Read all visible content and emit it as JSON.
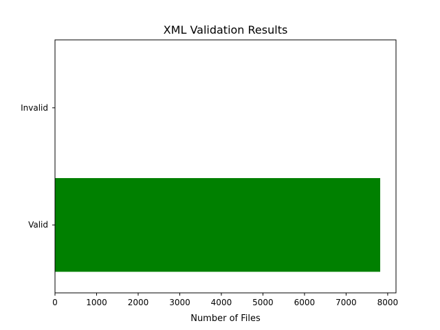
{
  "chart_data": {
    "type": "bar",
    "orientation": "horizontal",
    "title": "XML Validation Results",
    "xlabel": "Number of Files",
    "ylabel": "",
    "categories": [
      "Valid",
      "Invalid"
    ],
    "values": [
      7820,
      0
    ],
    "colors": [
      "#008000",
      "#ff0000"
    ],
    "xlim": [
      0,
      8200
    ],
    "xticks": [
      0,
      1000,
      2000,
      3000,
      4000,
      5000,
      6000,
      7000,
      8000
    ],
    "grid": false,
    "legend": "none"
  }
}
